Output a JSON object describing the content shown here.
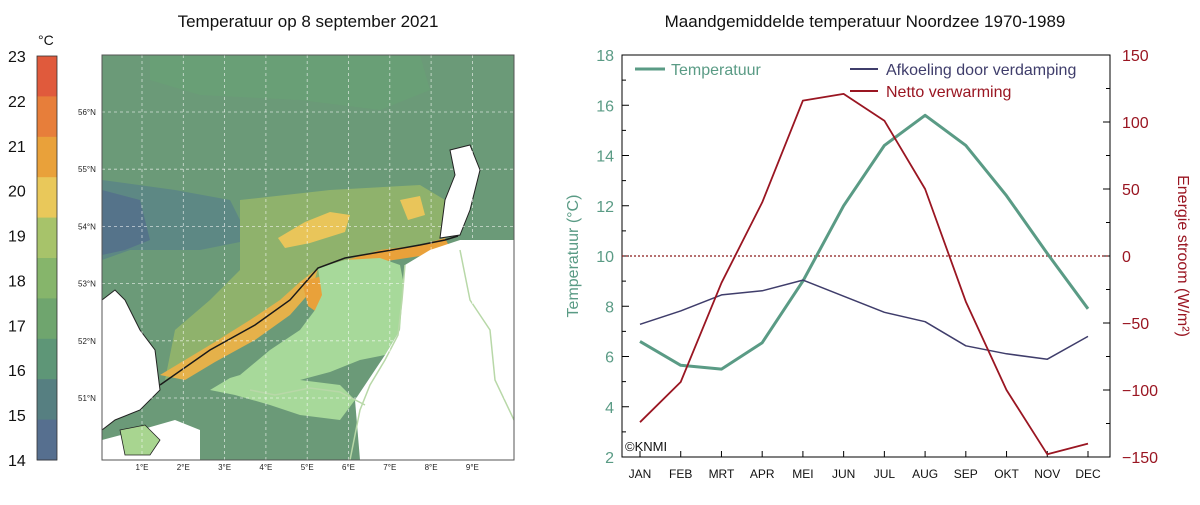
{
  "left_panel": {
    "title": "Temperatuur op 8 september 2021",
    "colorbar": {
      "unit": "°C",
      "ticks": [
        23,
        22,
        21,
        20,
        19,
        18,
        17,
        16,
        15,
        14
      ],
      "colors": [
        "#e05a3c",
        "#e77e3a",
        "#e9a13a",
        "#e9c85a",
        "#a7c36a",
        "#86b56b",
        "#6fa56e",
        "#5e9677",
        "#567f81",
        "#566f8f"
      ]
    },
    "lat_labels": [
      "56°N",
      "55°N",
      "54°N",
      "53°N",
      "52°N",
      "51°N"
    ],
    "lon_labels": [
      "1°E",
      "2°E",
      "3°E",
      "4°E",
      "5°E",
      "6°E",
      "7°E",
      "8°E",
      "9°E"
    ]
  },
  "chart_data": {
    "type": "line",
    "title": "Maandgemiddelde temperatuur Noordzee 1970-1989",
    "categories": [
      "JAN",
      "FEB",
      "MRT",
      "APR",
      "MEI",
      "JUN",
      "JUL",
      "AUG",
      "SEP",
      "OKT",
      "NOV",
      "DEC"
    ],
    "ylabel_left": "Temperatuur (°C)",
    "ylabel_right": "Energie stroom (W/m²)",
    "ylim_left": [
      2,
      18
    ],
    "ylim_right": [
      -150,
      150
    ],
    "yticks_left": [
      2,
      4,
      6,
      8,
      10,
      12,
      14,
      16,
      18
    ],
    "yticks_right": [
      -150,
      -100,
      -50,
      0,
      50,
      100,
      150
    ],
    "series": [
      {
        "name": "Temperatuur",
        "axis": "left",
        "color": "#5a9b85",
        "values": [
          6.6,
          5.65,
          5.5,
          6.55,
          9.0,
          12.0,
          14.4,
          15.6,
          14.4,
          12.4,
          10.1,
          7.9
        ]
      },
      {
        "name": "Afkoeling door verdamping",
        "axis": "right",
        "color": "#3f3d6b",
        "values": [
          -51,
          -41,
          -29,
          -26,
          -18,
          -30,
          -42,
          -49,
          -67,
          -73,
          -77,
          -60
        ]
      },
      {
        "name": "Netto verwarming",
        "axis": "right",
        "color": "#9a1622",
        "values": [
          -124,
          -94,
          -20,
          40,
          116,
          121,
          101,
          50,
          -34,
          -100,
          -148,
          -140
        ]
      }
    ],
    "reference_line": {
      "axis": "right",
      "value": 0,
      "color": "#8b1a1a"
    },
    "legend": [
      "Temperatuur",
      "Afkoeling door verdamping",
      "Netto verwarming"
    ],
    "annotation": "©KNMI"
  }
}
